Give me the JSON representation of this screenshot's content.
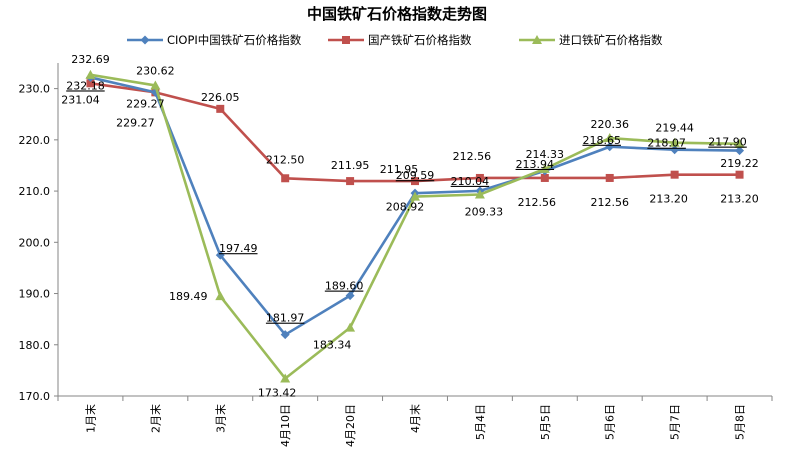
{
  "chart_data": {
    "type": "line",
    "title": "中国铁矿石价格指数走势图",
    "categories": [
      "1月末",
      "2月末",
      "3月末",
      "4月10日",
      "4月20日",
      "4月末",
      "5月4日",
      "5月5日",
      "5月6日",
      "5月7日",
      "5月8日"
    ],
    "ylim": [
      170,
      235
    ],
    "yticks": [
      "170.0",
      "180.0",
      "190.0",
      "200.0",
      "210.0",
      "220.0",
      "230.0"
    ],
    "legend_position": "top",
    "grid": false,
    "series": [
      {
        "name": "CIOPI中国铁矿石价格指数",
        "color": "#4F81BD",
        "marker": "diamond",
        "values": [
          232.18,
          229.27,
          197.49,
          181.97,
          189.6,
          209.59,
          210.04,
          213.94,
          218.65,
          218.07,
          217.9
        ],
        "labels": [
          "232.18",
          "229.27",
          "197.49",
          "181.97",
          "189.60",
          "209.59",
          "210.04",
          "213.94",
          "218.65",
          "218.07",
          "217.90"
        ]
      },
      {
        "name": "国产铁矿石价格指数",
        "color": "#C0504D",
        "marker": "square",
        "values": [
          231.04,
          229.27,
          226.05,
          212.5,
          211.95,
          211.95,
          212.56,
          212.56,
          212.56,
          213.2,
          213.2
        ],
        "labels": [
          "231.04",
          "229.27",
          "226.05",
          "212.50",
          "211.95",
          "211.95",
          "212.56",
          "212.56",
          "212.56",
          "213.20",
          "213.20"
        ]
      },
      {
        "name": "进口铁矿石价格指数",
        "color": "#9BBB59",
        "marker": "triangle",
        "values": [
          232.69,
          230.62,
          189.49,
          173.42,
          183.34,
          208.92,
          209.33,
          214.33,
          220.36,
          219.44,
          219.22
        ],
        "labels": [
          "232.69",
          "230.62",
          "189.49",
          "173.42",
          "183.34",
          "208.92",
          "209.33",
          "214.33",
          "220.36",
          "219.44",
          "219.22"
        ]
      }
    ]
  }
}
